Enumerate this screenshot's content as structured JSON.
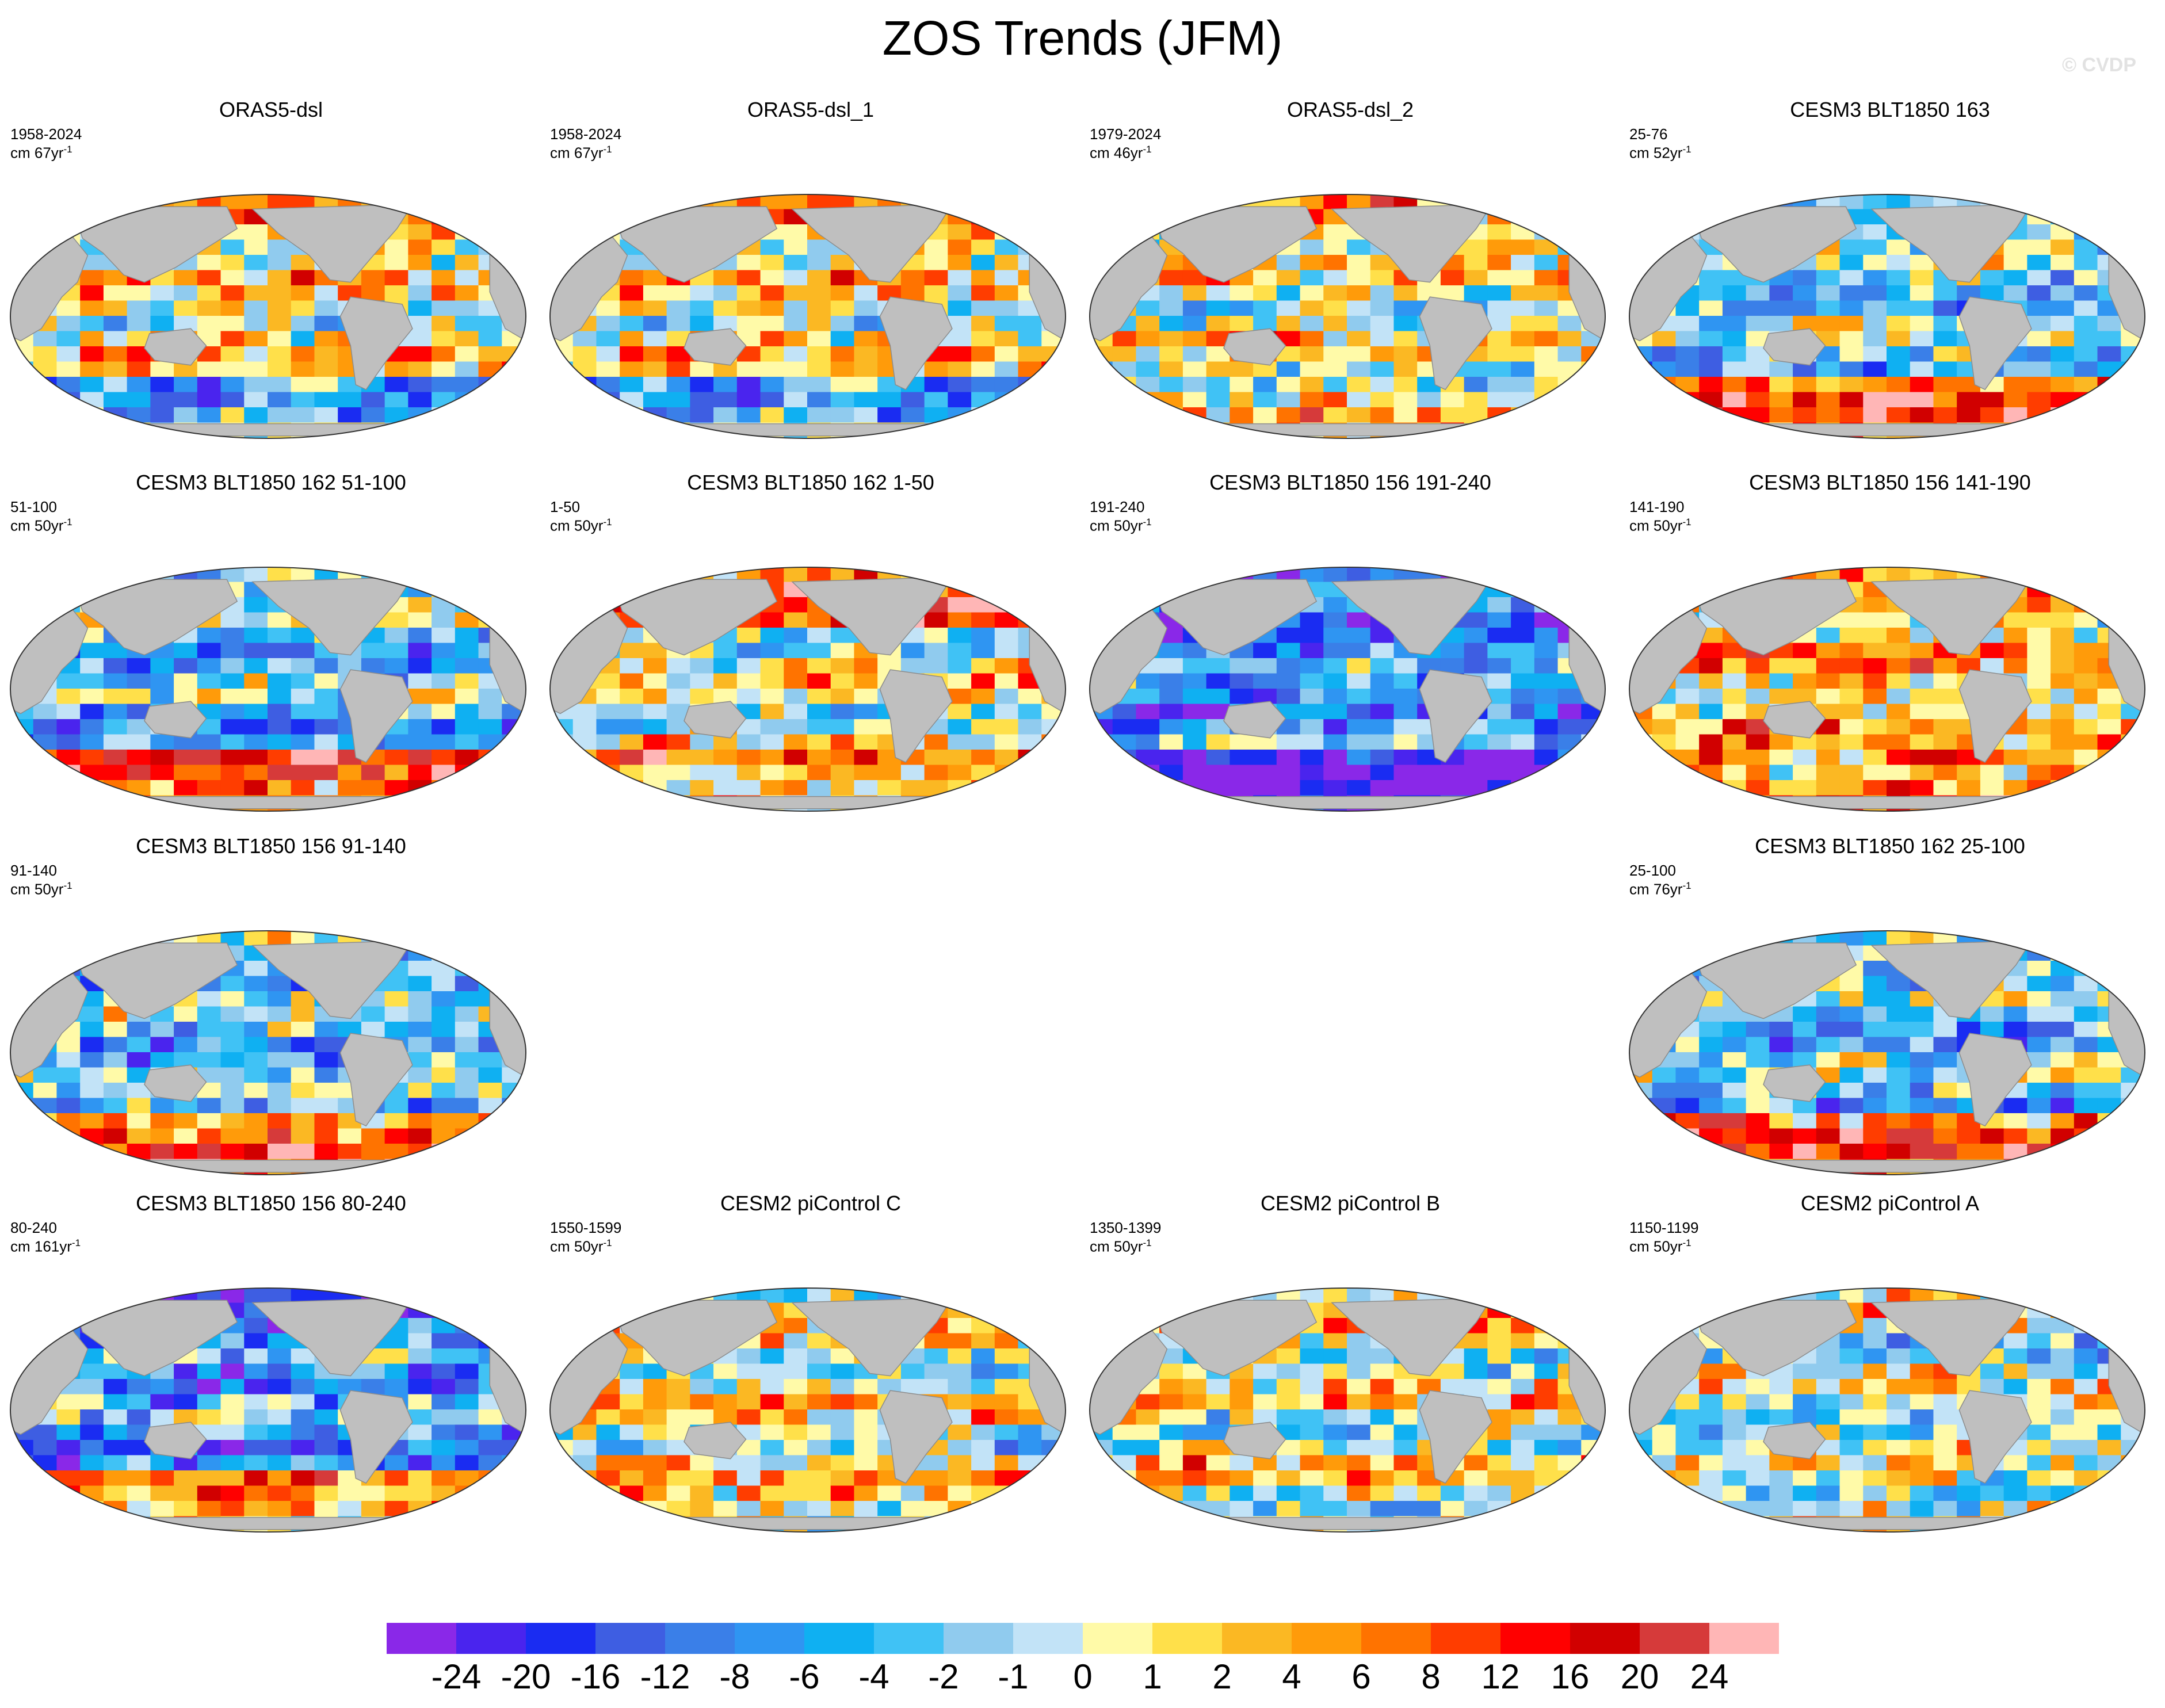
{
  "title": "ZOS Trends (JFM)",
  "copyright": "© CVDP",
  "colors": {
    "land": "#bfbfbf",
    "palette": [
      "#8a28e8",
      "#4a24ee",
      "#1a2cf2",
      "#3e5ee2",
      "#3a7fe8",
      "#2f95f2",
      "#0fb0f2",
      "#40c2f5",
      "#90cbee",
      "#c2e3f7",
      "#fffaa8",
      "#ffe04a",
      "#fbb823",
      "#ff9b0a",
      "#ff7300",
      "#ff3d00",
      "#ff0000",
      "#d10000",
      "#d63a3a",
      "#ffb6b6"
    ]
  },
  "chart_data": {
    "type": "heatmap",
    "variable": "ZOS",
    "season": "JFM",
    "projection": "Robinson",
    "colorbar": {
      "units": "cm per period",
      "levels": [
        "-24",
        "-20",
        "-16",
        "-12",
        "-8",
        "-6",
        "-4",
        "-2",
        "-1",
        "0",
        "1",
        "2",
        "4",
        "6",
        "8",
        "12",
        "16",
        "20",
        "24"
      ]
    },
    "panels": [
      {
        "title": "ORAS5-dsl",
        "years": "1958-2024",
        "units": "cm 67yr",
        "pattern": 1
      },
      {
        "title": "ORAS5-dsl_1",
        "years": "1958-2024",
        "units": "cm 67yr",
        "pattern": 1
      },
      {
        "title": "ORAS5-dsl_2",
        "years": "1979-2024",
        "units": "cm 46yr",
        "pattern": 2
      },
      {
        "title": "CESM3 BLT1850 163",
        "years": "25-76",
        "units": "cm 52yr",
        "pattern": 3
      },
      {
        "title": "CESM3 BLT1850 162 51-100",
        "years": "51-100",
        "units": "cm 50yr",
        "pattern": 4
      },
      {
        "title": "CESM3 BLT1850 162 1-50",
        "years": "1-50",
        "units": "cm 50yr",
        "pattern": 5
      },
      {
        "title": "CESM3 BLT1850 156 191-240",
        "years": "191-240",
        "units": "cm 50yr",
        "pattern": 6
      },
      {
        "title": "CESM3 BLT1850 156 141-190",
        "years": "141-190",
        "units": "cm 50yr",
        "pattern": 7
      },
      {
        "title": "CESM3 BLT1850 156 91-140",
        "years": "91-140",
        "units": "cm 50yr",
        "pattern": 8
      },
      null,
      null,
      {
        "title": "CESM3 BLT1850 162 25-100",
        "years": "25-100",
        "units": "cm 76yr",
        "pattern": 9
      },
      {
        "title": "CESM3 BLT1850 156 80-240",
        "years": "80-240",
        "units": "cm 161yr",
        "pattern": 10
      },
      {
        "title": "CESM2 piControl C",
        "years": "1550-1599",
        "units": "cm 50yr",
        "pattern": 11
      },
      {
        "title": "CESM2 piControl B",
        "years": "1350-1399",
        "units": "cm 50yr",
        "pattern": 12
      },
      {
        "title": "CESM2 piControl A",
        "years": "1150-1199",
        "units": "cm 50yr",
        "pattern": 13
      }
    ]
  }
}
